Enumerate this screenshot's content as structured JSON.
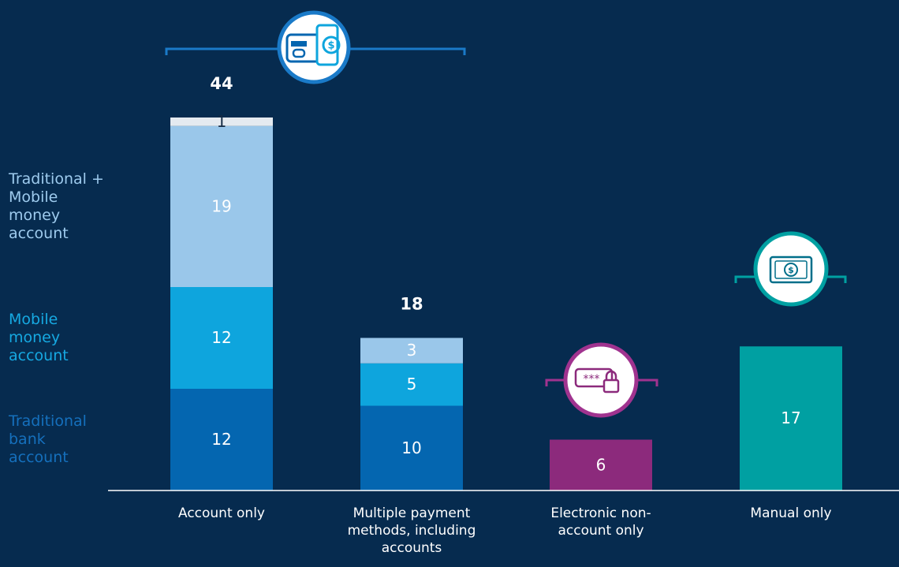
{
  "chart_data": {
    "type": "stacked_bar",
    "categories": [
      "Account only",
      "Multiple payment methods, including accounts",
      "Electronic non-account only",
      "Manual only"
    ],
    "series": [
      {
        "name": "Traditional bank account",
        "color": "#0466b0",
        "values": [
          12,
          10,
          null,
          null
        ]
      },
      {
        "name": "Mobile money account",
        "color": "#0ea5dd",
        "values": [
          12,
          5,
          null,
          null
        ]
      },
      {
        "name": "Traditional + Mobile money account",
        "color": "#9ac7ea",
        "values": [
          19,
          3,
          null,
          null
        ]
      },
      {
        "color": "#e4eaf0",
        "values": [
          1,
          null,
          null,
          null
        ]
      },
      {
        "color": "#8c2a7c",
        "values": [
          null,
          null,
          6,
          null
        ]
      },
      {
        "color": "#00a0a2",
        "values": [
          null,
          null,
          null,
          17
        ]
      }
    ],
    "totals": [
      44,
      18,
      null,
      null
    ],
    "ylim": [
      0,
      50
    ]
  }
}
